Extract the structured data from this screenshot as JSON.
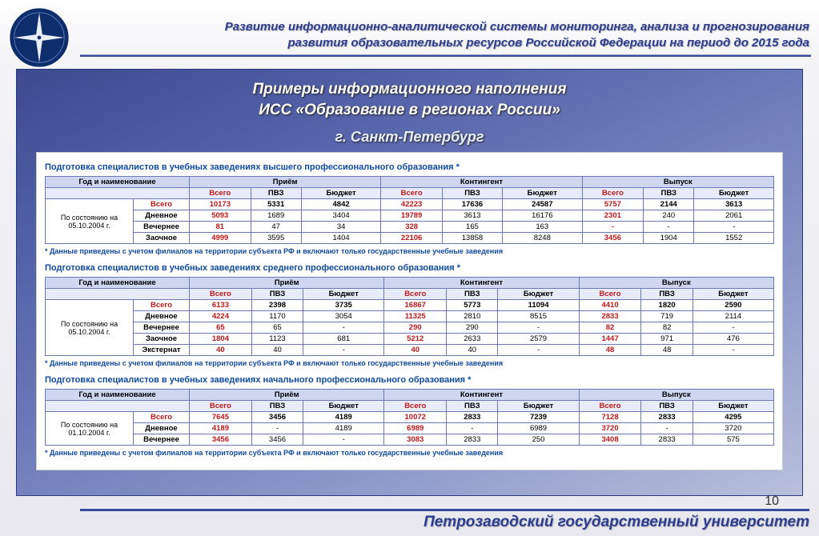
{
  "header": {
    "title_line1": "Развитие информационно-аналитической системы мониторинга, анализа и прогнозирования",
    "title_line2": "развития образовательных ресурсов Российской Федерации на период до 2015 года"
  },
  "panel": {
    "title": "Примеры информационного наполнения",
    "subtitle": "ИСС «Образование в регионах России»",
    "city": "г. Санкт-Петербург"
  },
  "page_number": "10",
  "footer": {
    "org": "Петрозаводский государственный университет"
  },
  "colors": {
    "brand_blue": "#2a3d8f",
    "panel_gradient_start": "#3d4a8e",
    "panel_gradient_end": "#b8c0dc",
    "table_header_bg": "#ced6f0",
    "table_subheader_bg": "#e8ecfa",
    "table_border": "#6b78b8",
    "heading_blue": "#104a9e",
    "vsego_red": "#c01818"
  },
  "table_headers": {
    "col_group_year": "Год и наименование",
    "col_group_priem": "Приём",
    "col_group_kont": "Контингент",
    "col_group_vypusk": "Выпуск",
    "sub_vsego": "Всего",
    "sub_pvz": "ПВЗ",
    "sub_budget": "Бюджет"
  },
  "row_labels": {
    "vsego": "Всего",
    "dnevnoe": "Дневное",
    "vechernee": "Вечернее",
    "zaochnoe": "Заочное",
    "eksternat": "Экстернат"
  },
  "footnote": "* Данные приведены с учетом филиалов на территории субъекта РФ и включают только государственные учебные заведения",
  "sections": [
    {
      "heading": "Подготовка специалистов в учебных заведениях высшего профессионального образования *",
      "date_label": "По состоянию на 05.10.2004 г.",
      "rows": [
        {
          "label": "vsego",
          "v": [
            "10173",
            "5331",
            "4842",
            "42223",
            "17636",
            "24587",
            "5757",
            "2144",
            "3613"
          ]
        },
        {
          "label": "dnevnoe",
          "v": [
            "5093",
            "1689",
            "3404",
            "19789",
            "3613",
            "16176",
            "2301",
            "240",
            "2061"
          ]
        },
        {
          "label": "vechernee",
          "v": [
            "81",
            "47",
            "34",
            "328",
            "165",
            "163",
            "-",
            "-",
            "-"
          ]
        },
        {
          "label": "zaochnoe",
          "v": [
            "4999",
            "3595",
            "1404",
            "22106",
            "13858",
            "8248",
            "3456",
            "1904",
            "1552"
          ]
        }
      ]
    },
    {
      "heading": "Подготовка специалистов в учебных заведениях среднего профессионального образования *",
      "date_label": "По состоянию на 05.10.2004 г.",
      "rows": [
        {
          "label": "vsego",
          "v": [
            "6133",
            "2398",
            "3735",
            "16867",
            "5773",
            "11094",
            "4410",
            "1820",
            "2590"
          ]
        },
        {
          "label": "dnevnoe",
          "v": [
            "4224",
            "1170",
            "3054",
            "11325",
            "2810",
            "8515",
            "2833",
            "719",
            "2114"
          ]
        },
        {
          "label": "vechernee",
          "v": [
            "65",
            "65",
            "-",
            "290",
            "290",
            "-",
            "82",
            "82",
            "-"
          ]
        },
        {
          "label": "zaochnoe",
          "v": [
            "1804",
            "1123",
            "681",
            "5212",
            "2633",
            "2579",
            "1447",
            "971",
            "476"
          ]
        },
        {
          "label": "eksternat",
          "v": [
            "40",
            "40",
            "-",
            "40",
            "40",
            "-",
            "48",
            "48",
            "-"
          ]
        }
      ]
    },
    {
      "heading": "Подготовка специалистов в учебных заведениях начального профессионального образования *",
      "date_label": "По состоянию на 01.10.2004 г.",
      "rows": [
        {
          "label": "vsego",
          "v": [
            "7645",
            "3456",
            "4189",
            "10072",
            "2833",
            "7239",
            "7128",
            "2833",
            "4295"
          ]
        },
        {
          "label": "dnevnoe",
          "v": [
            "4189",
            "-",
            "4189",
            "6989",
            "-",
            "6989",
            "3720",
            "-",
            "3720"
          ]
        },
        {
          "label": "vechernee",
          "v": [
            "3456",
            "3456",
            "-",
            "3083",
            "2833",
            "250",
            "3408",
            "2833",
            "575"
          ]
        }
      ]
    }
  ]
}
